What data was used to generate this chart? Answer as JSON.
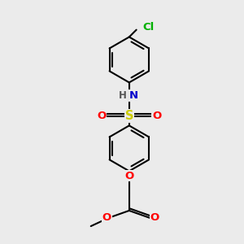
{
  "bg_color": "#ebebeb",
  "bond_color": "#000000",
  "bond_width": 1.5,
  "atom_colors": {
    "N": "#0000cc",
    "O": "#ff0000",
    "S": "#cccc00",
    "Cl": "#00b000",
    "H": "#555555",
    "C": "#000000"
  },
  "font_size": 8.5,
  "fig_size": [
    3.0,
    3.0
  ],
  "dpi": 100
}
